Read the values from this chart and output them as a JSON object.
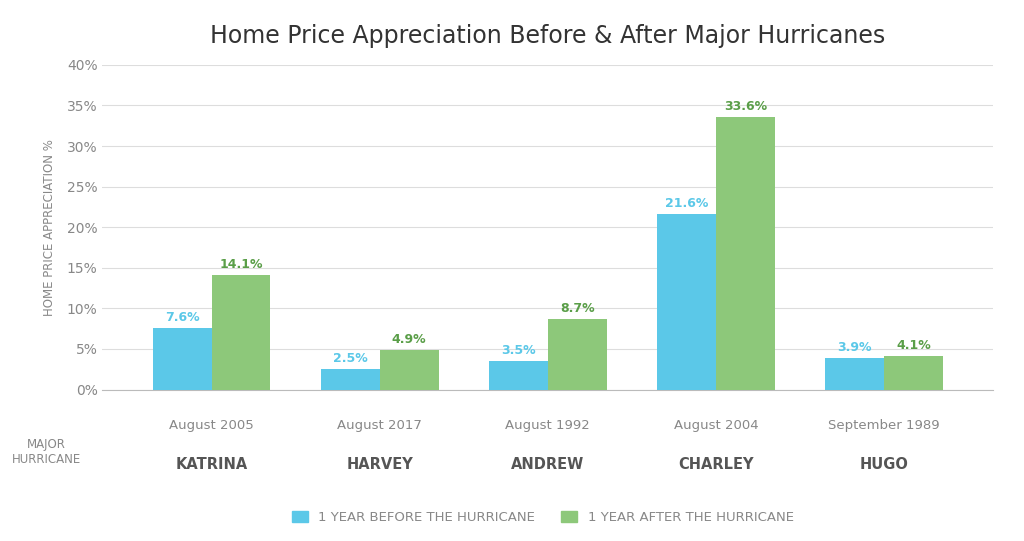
{
  "title": "Home Price Appreciation Before & After Major Hurricanes",
  "categories": [
    [
      "August 2005",
      "KATRINA"
    ],
    [
      "August 2017",
      "HARVEY"
    ],
    [
      "August 1992",
      "ANDREW"
    ],
    [
      "August 2004",
      "CHARLEY"
    ],
    [
      "September 1989",
      "HUGO"
    ]
  ],
  "before_values": [
    7.6,
    2.5,
    3.5,
    21.6,
    3.9
  ],
  "after_values": [
    14.1,
    4.9,
    8.7,
    33.6,
    4.1
  ],
  "before_color": "#5BC8E8",
  "after_color": "#8DC87A",
  "ylabel": "HOME PRICE APPRECIATION %",
  "xlabel_major": "MAJOR\nHURRICANE",
  "ylim": [
    0,
    40
  ],
  "yticks": [
    0,
    5,
    10,
    15,
    20,
    25,
    30,
    35,
    40
  ],
  "ytick_labels": [
    "0%",
    "5%",
    "10%",
    "15%",
    "20%",
    "25%",
    "30%",
    "35%",
    "40%"
  ],
  "legend_before": "1 YEAR BEFORE THE HURRICANE",
  "legend_after": "1 YEAR AFTER THE HURRICANE",
  "background_color": "#ffffff",
  "title_fontsize": 17,
  "bar_width": 0.35,
  "label_color_before": "#5BC8E8",
  "label_color_after": "#5A9E48"
}
